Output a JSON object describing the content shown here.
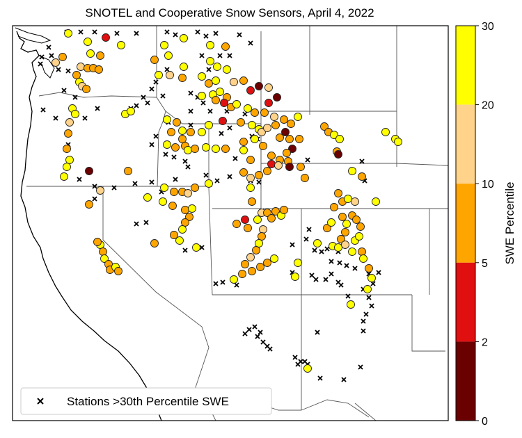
{
  "title": "SNOTEL and Cooperative Snow Sensors, April 4, 2022",
  "legend": {
    "label": "Stations >30th Percentile SWE",
    "marker": "x"
  },
  "colorbar": {
    "label": "SWE Percentile",
    "ticks": [
      "0",
      "2",
      "5",
      "10",
      "20",
      "30"
    ],
    "bins": [
      {
        "range": "0-2",
        "color": "#6b0000"
      },
      {
        "range": "2-5",
        "color": "#e01010"
      },
      {
        "range": "5-10",
        "color": "#ffa500"
      },
      {
        "range": "10-20",
        "color": "#ffd38a"
      },
      {
        "range": "20-30",
        "color": "#ffff00"
      }
    ]
  },
  "colors": {
    "coast_land": "#ffffff",
    "ocean": "#ffffff",
    "border": "#555555"
  }
}
